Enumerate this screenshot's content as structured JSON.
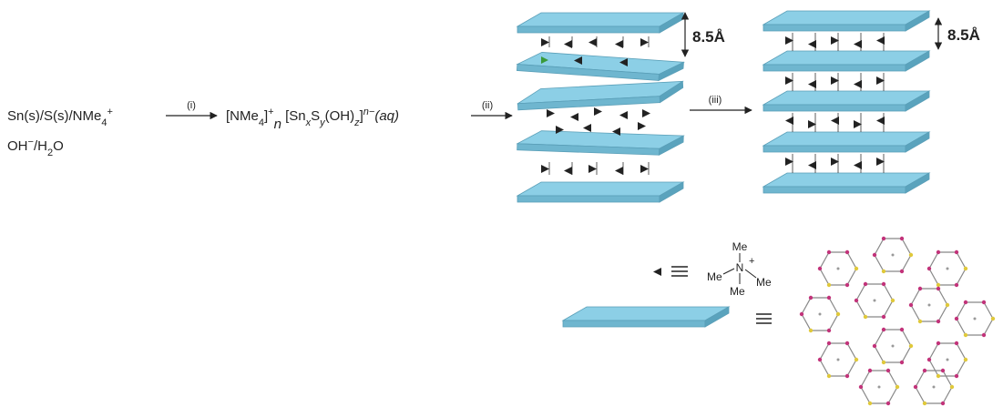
{
  "reactants": {
    "line1": [
      "Sn(s)/S(s)/NMe",
      "4",
      "+"
    ],
    "line2": [
      "OH",
      "−",
      "/H",
      "2",
      "O"
    ]
  },
  "steps": [
    "(i)",
    "(ii)",
    "(iii)"
  ],
  "product": [
    "[NMe",
    "4",
    "]",
    "+",
    "n",
    " [Sn",
    "x",
    "S",
    "y",
    "(OH)",
    "z",
    "]",
    "n−",
    "(aq)"
  ],
  "spacing": [
    "8.5Å",
    "8.5Å"
  ],
  "cation": {
    "center": "N",
    "charge": "+",
    "methyls": [
      "Me",
      "Me",
      "Me",
      "Me"
    ]
  }
}
